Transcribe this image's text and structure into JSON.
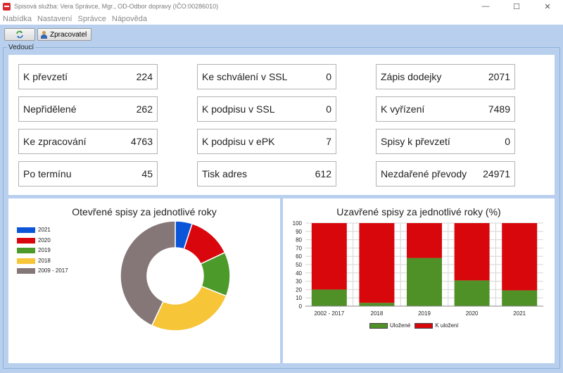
{
  "window": {
    "title": "Spisová služba: Vera Správce, Mgr., OD-Odbor dopravy  (IČO:00286010)",
    "controls": {
      "minimize": "—",
      "maximize": "☐",
      "close": "✕"
    }
  },
  "menu": [
    "Nabídka",
    "Nastavení",
    "Správce",
    "Nápověda"
  ],
  "toolbar": {
    "refresh_icon": "refresh-icon",
    "processor_label": "Zpracovatel"
  },
  "group_label": "Vedoucí",
  "stats": [
    {
      "label": "K převzetí",
      "value": "224"
    },
    {
      "label": "Nepřidělené",
      "value": "262"
    },
    {
      "label": "Ke zpracování",
      "value": "4763"
    },
    {
      "label": "Po termínu",
      "value": "45"
    },
    {
      "label": "Ke schválení v SSL",
      "value": "0"
    },
    {
      "label": "K podpisu v SSL",
      "value": "0"
    },
    {
      "label": "K podpisu v ePK",
      "value": "7"
    },
    {
      "label": "Tisk adres",
      "value": "612"
    },
    {
      "label": "Zápis dodejky",
      "value": "2071"
    },
    {
      "label": "K vyřízení",
      "value": "7489"
    },
    {
      "label": "Spisy k převzetí",
      "value": "0"
    },
    {
      "label": "Nezdařené převody",
      "value": "24971"
    }
  ],
  "chart_data": [
    {
      "type": "pie",
      "title": "Otevřené spisy za jednotlivé roky",
      "legend_position": "left",
      "categories": [
        "2021",
        "2020",
        "2019",
        "2018",
        "2009 - 2017"
      ],
      "values": [
        5,
        13,
        13,
        26,
        43
      ],
      "colors": [
        "#0b55d9",
        "#d9070d",
        "#4c9a2a",
        "#f6c538",
        "#857777"
      ]
    },
    {
      "type": "bar",
      "title": "Uzavřené spisy za jednotlivé roky (%)",
      "categories": [
        "2002 - 2017",
        "2018",
        "2019",
        "2020",
        "2021"
      ],
      "series": [
        {
          "name": "Uložené",
          "values": [
            20,
            4,
            58,
            31,
            19
          ],
          "color": "#4f9127"
        },
        {
          "name": "K uložení",
          "values": [
            80,
            96,
            42,
            69,
            81
          ],
          "color": "#d7070c"
        }
      ],
      "ylim": [
        0,
        100
      ],
      "yticks": [
        "0",
        "10",
        "20",
        "30",
        "40",
        "50",
        "60",
        "70",
        "80",
        "90",
        "100"
      ],
      "stacked": true,
      "legend_position": "bottom"
    }
  ]
}
